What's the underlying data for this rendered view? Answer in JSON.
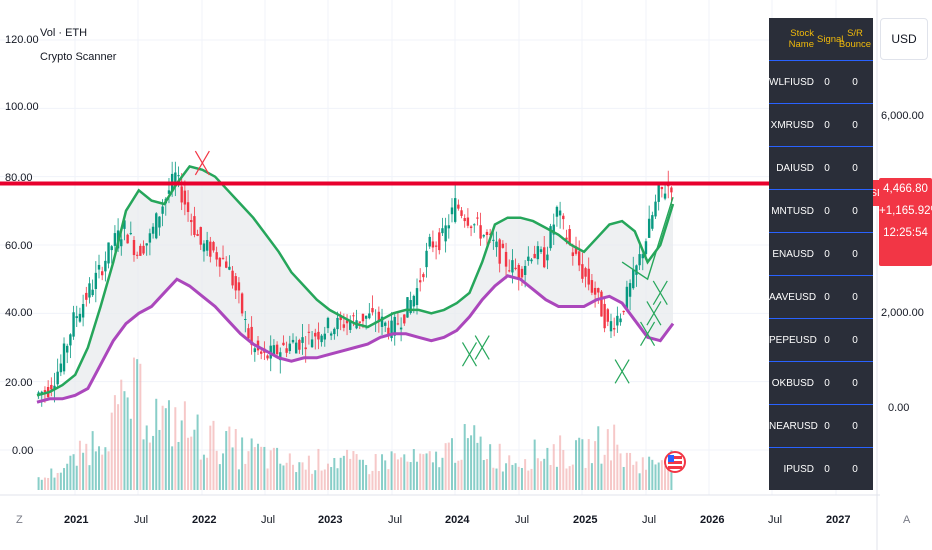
{
  "header": {
    "title": "Vol · ETH",
    "subtitle": "Crypto Scanner"
  },
  "left_axis": [
    "120.00",
    "100.00",
    "80.00",
    "60.00",
    "40.00",
    "20.00",
    "0.00"
  ],
  "right_axis": {
    "unit": "USD",
    "ticks": [
      "6,000.00",
      "2,000.00",
      "0.00"
    ]
  },
  "price_label": {
    "symbol": "ETHUSD",
    "price": "4,466.80",
    "change": "+1,165.92%",
    "countdown": "12:25:54"
  },
  "time_axis": {
    "labels": [
      "2021",
      "Jul",
      "2022",
      "Jul",
      "2023",
      "Jul",
      "2024",
      "Jul",
      "2025",
      "Jul",
      "2026",
      "Jul",
      "2027"
    ],
    "left_btn": "Z",
    "right_btn": "A"
  },
  "scanner": {
    "headers": [
      "Stock Name",
      "Signal",
      "S/R Bounce"
    ],
    "rows": [
      {
        "name": "WLFIUSD",
        "signal": "0",
        "bounce": "0"
      },
      {
        "name": "XMRUSD",
        "signal": "0",
        "bounce": "0"
      },
      {
        "name": "DAIUSD",
        "signal": "0",
        "bounce": "0"
      },
      {
        "name": "MNTUSD",
        "signal": "0",
        "bounce": "0"
      },
      {
        "name": "ENAUSD",
        "signal": "0",
        "bounce": "0"
      },
      {
        "name": "AAVEUSD",
        "signal": "0",
        "bounce": "0"
      },
      {
        "name": "PEPEUSD",
        "signal": "0",
        "bounce": "0"
      },
      {
        "name": "OKBUSD",
        "signal": "0",
        "bounce": "0"
      },
      {
        "name": "NEARUSD",
        "signal": "0",
        "bounce": "0"
      },
      {
        "name": "IPUSD",
        "signal": "0",
        "bounce": "0"
      }
    ]
  },
  "chart_data": {
    "type": "line",
    "x_start": "2020-10",
    "x_step": "month",
    "ylim": [
      -15,
      125
    ],
    "resistance_level": 78,
    "series": [
      {
        "color": "#26a65b",
        "values": [
          16,
          17,
          19,
          22,
          30,
          42,
          55,
          70,
          76,
          73,
          72,
          78,
          83,
          82,
          80,
          76,
          72,
          68,
          63,
          58,
          52,
          48,
          44,
          41,
          39,
          37,
          36,
          38,
          40,
          41,
          41,
          40,
          41,
          43,
          46,
          55,
          66,
          68,
          68,
          67,
          65,
          63,
          60,
          58,
          62,
          66,
          67,
          64,
          55,
          60,
          72
        ]
      },
      {
        "color": "#ab47bc",
        "values": [
          14,
          15,
          15,
          16,
          18,
          25,
          32,
          37,
          40,
          42,
          46,
          50,
          48,
          45,
          42,
          38,
          34,
          31,
          29,
          27,
          26,
          27,
          27,
          28,
          29,
          30,
          31,
          33,
          34,
          34,
          33,
          32,
          33,
          35,
          39,
          44,
          48,
          51,
          50,
          47,
          44,
          42,
          42,
          42,
          44,
          45,
          43,
          38,
          33,
          32,
          37
        ]
      },
      {
        "color": "#089981",
        "values": [
          16,
          18,
          25,
          38,
          45,
          52,
          60,
          65,
          58,
          62,
          72,
          80,
          70,
          60,
          58,
          55,
          44,
          30,
          27,
          29,
          31,
          32,
          34,
          36,
          37,
          38,
          39,
          38,
          35,
          40,
          47,
          60,
          62,
          72,
          68,
          64,
          60,
          55,
          52,
          58,
          56,
          70,
          60,
          52,
          46,
          36,
          40,
          50,
          62,
          75,
          78
        ]
      }
    ],
    "volume": [
      3,
      5,
      7,
      10,
      14,
      18,
      22,
      28,
      30,
      24,
      20,
      22,
      18,
      16,
      15,
      14,
      12,
      12,
      10,
      9,
      8,
      8,
      9,
      10,
      9,
      8,
      8,
      9,
      10,
      9,
      9,
      9,
      12,
      14,
      15,
      13,
      11,
      10,
      10,
      11,
      12,
      12,
      11,
      12,
      14,
      16,
      10,
      9,
      8,
      10,
      14
    ],
    "markers": [
      {
        "type": "x",
        "color": "#f23645",
        "x": 13,
        "y": 84
      },
      {
        "type": "x",
        "color": "#26a65b",
        "x": 34,
        "y": 28
      },
      {
        "type": "x",
        "color": "#26a65b",
        "x": 35,
        "y": 30
      },
      {
        "type": "x",
        "color": "#26a65b",
        "x": 46,
        "y": 23
      },
      {
        "type": "x",
        "color": "#26a65b",
        "x": 48,
        "y": 34
      },
      {
        "type": "x",
        "color": "#26a65b",
        "x": 48.5,
        "y": 40
      },
      {
        "type": "x",
        "color": "#26a65b",
        "x": 49,
        "y": 46
      }
    ]
  }
}
